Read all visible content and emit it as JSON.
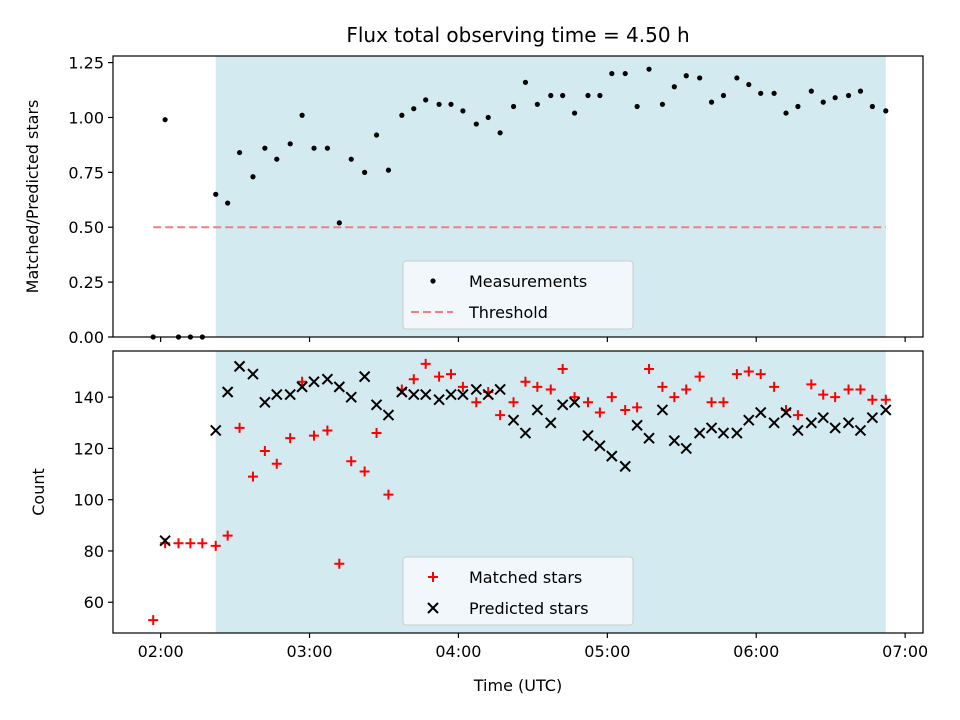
{
  "chart_data": [
    {
      "type": "scatter",
      "title": "Flux total observing time = 4.50 h",
      "xlabel": "",
      "ylabel": "Matched/Predicted stars",
      "xlim": [
        1.68,
        7.12
      ],
      "ylim": [
        0.0,
        1.28
      ],
      "xticks": [
        2,
        3,
        4,
        5,
        6,
        7
      ],
      "xtick_labels_shown": false,
      "yticks": [
        0.0,
        0.25,
        0.5,
        0.75,
        1.0,
        1.25
      ],
      "ytick_labels": [
        "0.00",
        "0.25",
        "0.50",
        "0.75",
        "1.00",
        "1.25"
      ],
      "grid": false,
      "shaded_span": {
        "x0": 2.37,
        "x1": 6.87,
        "color": "#d3eaf0"
      },
      "threshold": {
        "name": "Threshold",
        "y": 0.5,
        "x0": 1.95,
        "x1": 6.87,
        "color": "#f08080",
        "style": "dashed"
      },
      "legend": {
        "placement": "lower-center",
        "entries": [
          "Measurements",
          "Threshold"
        ]
      },
      "series": [
        {
          "name": "Measurements",
          "marker": "dot",
          "color": "#000000",
          "x": [
            1.95,
            2.03,
            2.12,
            2.2,
            2.28,
            2.37,
            2.45,
            2.53,
            2.62,
            2.7,
            2.78,
            2.87,
            2.95,
            3.03,
            3.12,
            3.2,
            3.28,
            3.37,
            3.45,
            3.53,
            3.62,
            3.7,
            3.78,
            3.87,
            3.95,
            4.03,
            4.12,
            4.2,
            4.28,
            4.37,
            4.45,
            4.53,
            4.62,
            4.7,
            4.78,
            4.87,
            4.95,
            5.03,
            5.12,
            5.2,
            5.28,
            5.37,
            5.45,
            5.53,
            5.62,
            5.7,
            5.78,
            5.87,
            5.95,
            6.03,
            6.12,
            6.2,
            6.28,
            6.37,
            6.45,
            6.53,
            6.62,
            6.7,
            6.78,
            6.87
          ],
          "y": [
            0.0,
            0.99,
            0.0,
            0.0,
            0.0,
            0.65,
            0.61,
            0.84,
            0.73,
            0.86,
            0.81,
            0.88,
            1.01,
            0.86,
            0.86,
            0.52,
            0.81,
            0.75,
            0.92,
            0.76,
            1.01,
            1.04,
            1.08,
            1.06,
            1.06,
            1.03,
            0.97,
            1.0,
            0.93,
            1.05,
            1.16,
            1.06,
            1.1,
            1.1,
            1.02,
            1.1,
            1.1,
            1.2,
            1.2,
            1.05,
            1.22,
            1.06,
            1.14,
            1.19,
            1.18,
            1.07,
            1.1,
            1.18,
            1.15,
            1.11,
            1.11,
            1.02,
            1.05,
            1.12,
            1.07,
            1.09,
            1.1,
            1.12,
            1.05,
            1.03
          ]
        }
      ]
    },
    {
      "type": "scatter",
      "title": "",
      "xlabel": "Time (UTC)",
      "ylabel": "Count",
      "xlim": [
        1.68,
        7.12
      ],
      "ylim": [
        48,
        158
      ],
      "xticks": [
        2,
        3,
        4,
        5,
        6,
        7
      ],
      "xtick_labels": [
        "02:00",
        "03:00",
        "04:00",
        "05:00",
        "06:00",
        "07:00"
      ],
      "yticks": [
        60,
        80,
        100,
        120,
        140
      ],
      "ytick_labels": [
        "60",
        "80",
        "100",
        "120",
        "140"
      ],
      "grid": false,
      "shaded_span": {
        "x0": 2.37,
        "x1": 6.87,
        "color": "#d3eaf0"
      },
      "legend": {
        "placement": "lower-center",
        "entries": [
          "Matched stars",
          "Predicted stars"
        ]
      },
      "series": [
        {
          "name": "Matched stars",
          "marker": "plus",
          "color": "#ff0000",
          "x": [
            1.95,
            2.03,
            2.12,
            2.2,
            2.28,
            2.37,
            2.45,
            2.53,
            2.62,
            2.7,
            2.78,
            2.87,
            2.95,
            3.03,
            3.12,
            3.2,
            3.28,
            3.37,
            3.45,
            3.53,
            3.62,
            3.7,
            3.78,
            3.87,
            3.95,
            4.03,
            4.12,
            4.2,
            4.28,
            4.37,
            4.45,
            4.53,
            4.62,
            4.7,
            4.78,
            4.87,
            4.95,
            5.03,
            5.12,
            5.2,
            5.28,
            5.37,
            5.45,
            5.53,
            5.62,
            5.7,
            5.78,
            5.87,
            5.95,
            6.03,
            6.12,
            6.2,
            6.28,
            6.37,
            6.45,
            6.53,
            6.62,
            6.7,
            6.78,
            6.87
          ],
          "y": [
            53,
            83,
            83,
            83,
            83,
            82,
            86,
            128,
            109,
            119,
            114,
            124,
            146,
            125,
            127,
            75,
            115,
            111,
            126,
            102,
            143,
            147,
            153,
            148,
            149,
            144,
            138,
            142,
            133,
            138,
            146,
            144,
            143,
            151,
            140,
            138,
            134,
            140,
            135,
            136,
            151,
            144,
            140,
            143,
            148,
            138,
            138,
            149,
            150,
            149,
            144,
            135,
            133,
            145,
            141,
            140,
            143,
            143,
            139,
            139
          ]
        },
        {
          "name": "Predicted stars",
          "marker": "x",
          "color": "#000000",
          "x": [
            2.03,
            2.37,
            2.45,
            2.53,
            2.62,
            2.7,
            2.78,
            2.87,
            2.95,
            3.03,
            3.12,
            3.2,
            3.28,
            3.37,
            3.45,
            3.53,
            3.62,
            3.7,
            3.78,
            3.87,
            3.95,
            4.03,
            4.12,
            4.2,
            4.28,
            4.37,
            4.45,
            4.53,
            4.62,
            4.7,
            4.78,
            4.87,
            4.95,
            5.03,
            5.12,
            5.2,
            5.28,
            5.37,
            5.45,
            5.53,
            5.62,
            5.7,
            5.78,
            5.87,
            5.95,
            6.03,
            6.12,
            6.2,
            6.28,
            6.37,
            6.45,
            6.53,
            6.62,
            6.7,
            6.78,
            6.87
          ],
          "y": [
            84,
            127,
            142,
            152,
            149,
            138,
            141,
            141,
            144,
            146,
            147,
            144,
            140,
            148,
            137,
            133,
            142,
            141,
            141,
            139,
            141,
            141,
            143,
            141,
            143,
            131,
            126,
            135,
            130,
            137,
            138,
            125,
            121,
            117,
            113,
            129,
            124,
            135,
            123,
            120,
            126,
            128,
            126,
            126,
            131,
            134,
            130,
            134,
            127,
            130,
            132,
            128,
            130,
            127,
            132,
            135
          ]
        }
      ]
    }
  ]
}
